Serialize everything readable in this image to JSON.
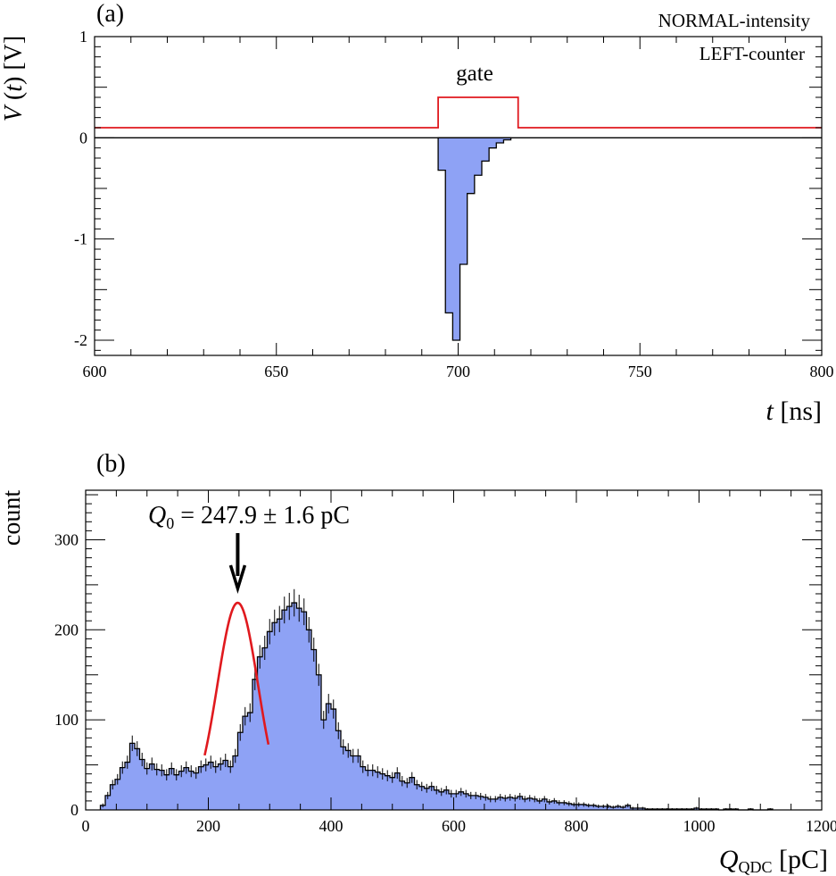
{
  "colors": {
    "fill": "#8ea2f5",
    "outline": "#000000",
    "accent": "#e0191e",
    "axis": "#000000"
  },
  "chart_data": [
    {
      "type": "area",
      "panel_label": "(a)",
      "title": "",
      "annotations": [
        "NORMAL-intensity",
        "LEFT-counter",
        "gate"
      ],
      "xlabel": {
        "var": "t",
        "unit": " [ns]"
      },
      "ylabel": {
        "var": "V",
        "arg": "t",
        "unit": " [V]"
      },
      "xlim": [
        600,
        800
      ],
      "ylim": [
        -2.15,
        1.0
      ],
      "xticks": [
        600,
        650,
        700,
        750,
        800
      ],
      "yticks": [
        -2,
        -1,
        0,
        1
      ],
      "series": [
        {
          "name": "gate",
          "style": "line",
          "x": [
            600,
            694.5,
            694.5,
            716.5,
            716.5,
            800
          ],
          "values": [
            0.1,
            0.1,
            0.4,
            0.4,
            0.1,
            0.1
          ]
        },
        {
          "name": "V(t)",
          "style": "step-filled",
          "edges": [
            694.5,
            696.5,
            698.5,
            700.5,
            702.5,
            704.5,
            706.5,
            708.5,
            710.5,
            712.5,
            714.5
          ],
          "values": [
            -0.32,
            -1.73,
            -2.0,
            -1.25,
            -0.55,
            -0.37,
            -0.23,
            -0.1,
            -0.05,
            -0.02
          ]
        }
      ]
    },
    {
      "type": "bar",
      "panel_label": "(b)",
      "title": "",
      "annotation": {
        "sym": "Q",
        "sub": "0",
        "text": " = 247.9 ± 1.6 pC"
      },
      "xlabel": {
        "sym": "Q",
        "sub": "QDC",
        "unit": " [pC]"
      },
      "ylabel": "count",
      "xlim": [
        0,
        1200
      ],
      "ylim": [
        0,
        355
      ],
      "xticks": [
        0,
        200,
        400,
        600,
        800,
        1000,
        1200
      ],
      "yticks": [
        0,
        100,
        200,
        300
      ],
      "bin_width": 8,
      "bin_start": 24,
      "values": [
        5,
        16,
        28,
        34,
        47,
        53,
        74,
        68,
        56,
        46,
        51,
        45,
        44,
        39,
        46,
        39,
        43,
        47,
        43,
        41,
        48,
        50,
        53,
        48,
        51,
        55,
        48,
        60,
        86,
        104,
        108,
        145,
        170,
        180,
        198,
        208,
        212,
        222,
        226,
        230,
        224,
        220,
        200,
        178,
        150,
        100,
        118,
        112,
        88,
        70,
        66,
        60,
        60,
        48,
        44,
        44,
        42,
        40,
        38,
        36,
        41,
        32,
        30,
        36,
        28,
        26,
        24,
        26,
        22,
        20,
        22,
        18,
        18,
        20,
        18,
        16,
        16,
        15,
        14,
        12,
        12,
        14,
        13,
        14,
        13,
        15,
        12,
        13,
        12,
        10,
        12,
        9,
        10,
        8,
        8,
        7,
        6,
        6,
        6,
        5,
        5,
        4,
        4,
        4,
        3,
        4,
        3,
        5,
        2,
        2,
        2,
        1,
        1,
        1,
        1,
        1,
        1,
        1,
        1,
        1,
        1,
        2,
        1,
        1,
        1,
        1,
        0,
        1,
        1,
        1,
        0,
        0,
        1,
        0,
        0,
        0,
        1
      ],
      "fit": {
        "type": "gaussian",
        "mean": 247.9,
        "sigma": 33,
        "amplitude": 230,
        "range": [
          194,
          298
        ]
      },
      "arrow_at": 247.9
    }
  ]
}
